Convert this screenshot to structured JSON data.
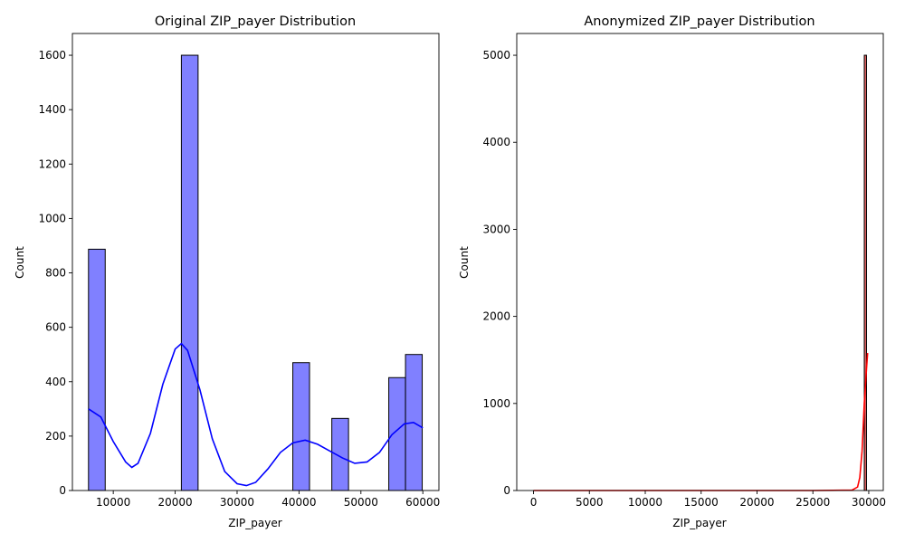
{
  "chart_data": [
    {
      "type": "bar",
      "title": "Original ZIP_payer Distribution",
      "xlabel": "ZIP_payer",
      "ylabel": "Count",
      "xlim": [
        3400,
        62600
      ],
      "ylim": [
        0,
        1680
      ],
      "xticks": [
        10000,
        20000,
        30000,
        40000,
        50000,
        60000
      ],
      "yticks": [
        0,
        200,
        400,
        600,
        800,
        1000,
        1200,
        1400,
        1600
      ],
      "bar_color": "#8080ff",
      "edge_color": "#000000",
      "bins": [
        {
          "x0": 6000,
          "x1": 8700,
          "count": 887
        },
        {
          "x0": 21000,
          "x1": 23700,
          "count": 1600
        },
        {
          "x0": 39000,
          "x1": 41700,
          "count": 470
        },
        {
          "x0": 45300,
          "x1": 48000,
          "count": 265
        },
        {
          "x0": 54500,
          "x1": 57200,
          "count": 415
        },
        {
          "x0": 57200,
          "x1": 59900,
          "count": 500
        }
      ],
      "kde": {
        "color": "#0000ff",
        "x": [
          6000,
          8000,
          10000,
          12000,
          13000,
          14000,
          16000,
          18000,
          20000,
          21000,
          22000,
          24000,
          26000,
          28000,
          30000,
          31500,
          33000,
          35000,
          37000,
          39000,
          41000,
          43000,
          45000,
          47000,
          49000,
          51000,
          53000,
          55000,
          57000,
          58500,
          60000
        ],
        "y": [
          300,
          270,
          180,
          105,
          85,
          100,
          210,
          390,
          520,
          540,
          515,
          370,
          190,
          70,
          25,
          18,
          30,
          80,
          140,
          175,
          185,
          170,
          145,
          120,
          100,
          105,
          140,
          205,
          245,
          250,
          230
        ]
      }
    },
    {
      "type": "bar",
      "title": "Anonymized ZIP_payer Distribution",
      "xlabel": "ZIP_payer",
      "ylabel": "Count",
      "xlim": [
        -1500,
        31300
      ],
      "ylim": [
        0,
        5250
      ],
      "xticks": [
        0,
        5000,
        10000,
        15000,
        20000,
        25000,
        30000
      ],
      "yticks": [
        0,
        1000,
        2000,
        3000,
        4000,
        5000
      ],
      "bar_color": "#e06060",
      "edge_color": "#000000",
      "bins": [
        {
          "x0": 0,
          "x1": 29600,
          "count": 0
        },
        {
          "x0": 29600,
          "x1": 29800,
          "count": 5000
        }
      ],
      "kde": {
        "color": "#ff0000",
        "x": [
          0,
          5000,
          10000,
          15000,
          20000,
          25000,
          28500,
          29000,
          29200,
          29400,
          29600,
          29800,
          29900
        ],
        "y": [
          0,
          0,
          0,
          0,
          0,
          0,
          5,
          40,
          150,
          450,
          1000,
          1400,
          1580
        ]
      }
    }
  ]
}
